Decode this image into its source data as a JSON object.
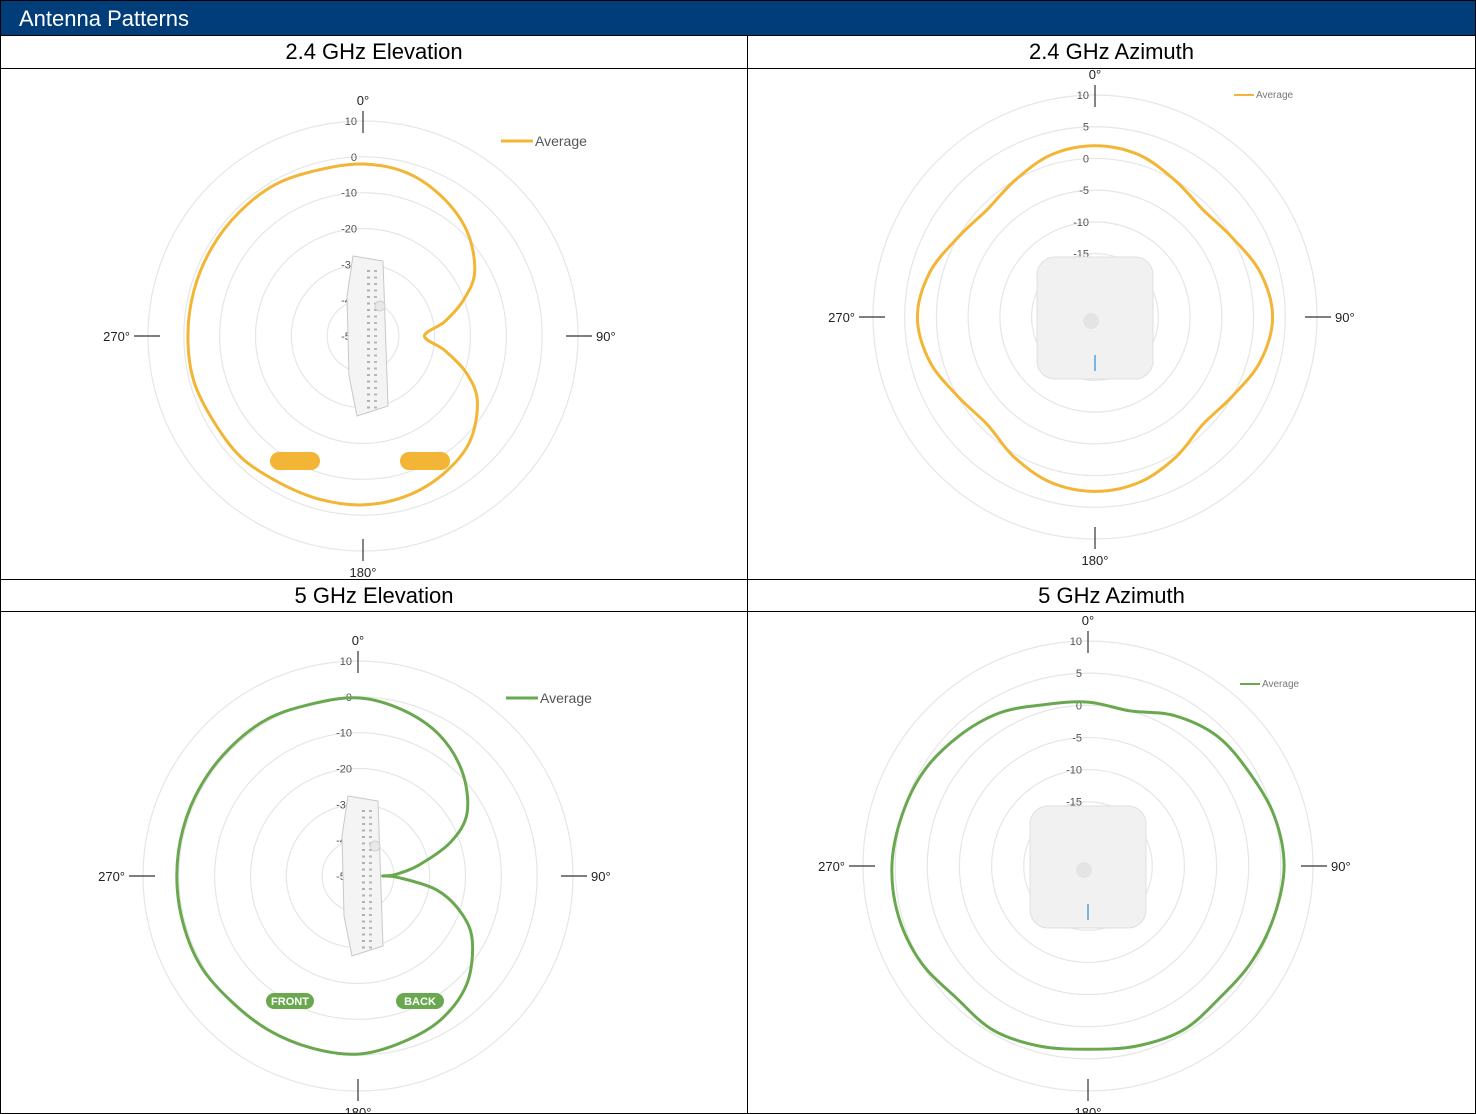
{
  "header": {
    "title": "Antenna Patterns"
  },
  "colors": {
    "header_bg": "#003d79",
    "ghz24": "#f2b535",
    "ghz5": "#6aa84f",
    "ring": "#e6e6e6"
  },
  "chart_data": [
    {
      "type": "polar",
      "title": "2.4 GHz Elevation",
      "angle_labels": [
        "0°",
        "90°",
        "180°",
        "270°"
      ],
      "r_labels": [
        "10",
        "0",
        "-10",
        "-20",
        "-30",
        "-40",
        "-50"
      ],
      "rlim": [
        -60,
        10
      ],
      "grid": true,
      "legend": "top-right",
      "icon": "access-point-side-view",
      "pills": [
        "",
        ""
      ],
      "series": [
        {
          "name": "Average",
          "color": "#f2b535",
          "theta": [
            0,
            15,
            30,
            45,
            60,
            70,
            80,
            90,
            100,
            110,
            120,
            135,
            150,
            165,
            180,
            195,
            210,
            225,
            240,
            255,
            270,
            285,
            300,
            315,
            330,
            345,
            360
          ],
          "r": [
            -4,
            -5,
            -8,
            -12,
            -18,
            -25,
            -33,
            -40,
            -33,
            -24,
            -17,
            -11,
            -8,
            -6,
            -5,
            -5,
            -5,
            -4,
            -4,
            -3,
            -3,
            -3,
            -3,
            -3,
            -3,
            -4,
            -4
          ]
        }
      ]
    },
    {
      "type": "polar",
      "title": "2.4 GHz Azimuth",
      "angle_labels": [
        "0°",
        "90°",
        "180°",
        "270°"
      ],
      "r_labels": [
        "10",
        "5",
        "0",
        "-5",
        "-10",
        "-15"
      ],
      "rlim": [
        -25,
        10
      ],
      "grid": true,
      "legend": "top-right",
      "icon": "access-point-top-view",
      "series": [
        {
          "name": "Average",
          "color": "#f2b535",
          "theta": [
            0,
            15,
            30,
            45,
            60,
            75,
            90,
            105,
            120,
            135,
            150,
            165,
            180,
            195,
            210,
            225,
            240,
            255,
            270,
            285,
            300,
            315,
            330,
            345,
            360
          ],
          "r": [
            2,
            1.5,
            0,
            -1,
            0,
            2,
            3,
            2,
            0,
            -1,
            0.5,
            2,
            2.5,
            2,
            0.5,
            -1,
            0,
            2,
            3,
            2,
            0,
            -1,
            0,
            1.5,
            2
          ]
        }
      ]
    },
    {
      "type": "polar",
      "title": "5 GHz Elevation",
      "angle_labels": [
        "0°",
        "90°",
        "180°",
        "270°"
      ],
      "r_labels": [
        "10",
        "0",
        "-10",
        "-20",
        "-30",
        "-40",
        "-50"
      ],
      "rlim": [
        -60,
        10
      ],
      "grid": true,
      "legend": "top-right",
      "icon": "access-point-side-view",
      "pills": [
        "FRONT",
        "BACK"
      ],
      "series": [
        {
          "name": "Average",
          "color": "#6aa84f",
          "theta": [
            0,
            15,
            30,
            45,
            60,
            70,
            80,
            88,
            90,
            92,
            100,
            110,
            120,
            135,
            150,
            165,
            180,
            195,
            210,
            225,
            240,
            255,
            270,
            285,
            300,
            315,
            330,
            345,
            360
          ],
          "r": [
            -2,
            -4,
            -7,
            -12,
            -19,
            -28,
            -40,
            -48,
            -52,
            -47,
            -34,
            -24,
            -17,
            -10,
            -6,
            -4,
            -2,
            -2,
            -2,
            -2,
            -1,
            -1,
            -1,
            -1,
            -1,
            -1,
            -1,
            -2,
            -2
          ]
        }
      ]
    },
    {
      "type": "polar",
      "title": "5 GHz Azimuth",
      "angle_labels": [
        "0°",
        "90°",
        "180°",
        "270°"
      ],
      "r_labels": [
        "10",
        "5",
        "0",
        "-5",
        "-10",
        "-15"
      ],
      "rlim": [
        -25,
        10
      ],
      "grid": true,
      "legend": "top-right",
      "icon": "access-point-top-view",
      "series": [
        {
          "name": "Average",
          "color": "#6aa84f",
          "theta": [
            0,
            15,
            30,
            45,
            60,
            75,
            90,
            105,
            120,
            135,
            150,
            165,
            180,
            195,
            210,
            225,
            240,
            255,
            270,
            285,
            300,
            315,
            330,
            345,
            360
          ],
          "r": [
            0.5,
            0,
            2,
            3.5,
            4,
            5,
            5.5,
            5,
            4.5,
            4,
            4.5,
            4,
            3.5,
            4,
            4.5,
            4,
            5,
            5.5,
            5.5,
            5,
            4.5,
            3.5,
            2.5,
            1,
            0.5
          ]
        }
      ]
    }
  ]
}
